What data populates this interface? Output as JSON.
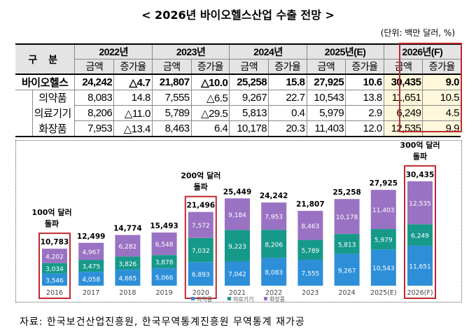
{
  "title": "< 2026년 바이오헬스산업 수출 전망 >",
  "unit": "(단위: 백만 달러, %)",
  "table": {
    "corner": "구  분",
    "years": [
      "2022년",
      "2023년",
      "2024년",
      "2025년(E)",
      "2026년(F)"
    ],
    "subheaders": [
      "금액",
      "증가율"
    ],
    "rows": [
      {
        "label": "바이오헬스",
        "cells": [
          "24,242",
          "△4.7",
          "21,807",
          "△10.0",
          "25,258",
          "15.8",
          "27,925",
          "10.6",
          "30,435",
          "9.0"
        ]
      },
      {
        "label": "의약품",
        "cells": [
          "8,083",
          "14.8",
          "7,555",
          "△6.5",
          "9,267",
          "22.7",
          "10,543",
          "13.8",
          "11,651",
          "10.5"
        ]
      },
      {
        "label": "의료기기",
        "cells": [
          "8,206",
          "△11.0",
          "5,789",
          "△29.5",
          "5,813",
          "0.4",
          "5,979",
          "2.9",
          "6,249",
          "4.5"
        ]
      },
      {
        "label": "화장품",
        "cells": [
          "7,953",
          "△13.4",
          "8,463",
          "6.4",
          "10,178",
          "20.3",
          "11,403",
          "12.0",
          "12,535",
          "9.9"
        ]
      }
    ]
  },
  "chart_data": {
    "type": "bar",
    "stacked": true,
    "categories": [
      "2016",
      "2017",
      "2018",
      "2019",
      "2020",
      "2021",
      "2022",
      "2023",
      "2024",
      "2025(E)",
      "2026(F)"
    ],
    "series": [
      {
        "name": "의약품",
        "color": "#2e8fd9",
        "values": [
          3546,
          4058,
          4665,
          5066,
          6893,
          7042,
          8083,
          7555,
          9267,
          10543,
          11651
        ]
      },
      {
        "name": "의료기기",
        "color": "#17998a",
        "values": [
          3034,
          3475,
          3826,
          3878,
          7032,
          9223,
          8206,
          5789,
          5813,
          5979,
          6249
        ]
      },
      {
        "name": "화장품",
        "color": "#9a72c3",
        "values": [
          4202,
          4967,
          6282,
          6548,
          7572,
          9184,
          7953,
          8463,
          10178,
          11403,
          12535
        ]
      }
    ],
    "totals": [
      "10,783",
      "12,499",
      "14,774",
      "15,493",
      "21,496",
      "25,449",
      "24,242",
      "21,807",
      "25,258",
      "27,925",
      "30,435"
    ],
    "labels": [
      [
        "3,546",
        "4,058",
        "4,665",
        "5,066",
        "6,893",
        "7,042",
        "8,083",
        "7,555",
        "9,267",
        "10,543",
        "11,651"
      ],
      [
        "3,034",
        "3,475",
        "3,826",
        "3,878",
        "7,032",
        "9,223",
        "8,206",
        "5,789",
        "5,813",
        "5,979",
        "6,249"
      ],
      [
        "4,202",
        "4,967",
        "6,282",
        "6,548",
        "7,572",
        "9,184",
        "7,953",
        "8,463",
        "10,178",
        "11,403",
        "12,535"
      ]
    ],
    "annotations": [
      {
        "index": 0,
        "lines": [
          "100억 달러",
          "돌파"
        ]
      },
      {
        "index": 4,
        "lines": [
          "200억 달러",
          "돌파"
        ]
      },
      {
        "index": 10,
        "lines": [
          "300억 달러",
          "돌파"
        ]
      }
    ],
    "highlight_color": "#c0282d"
  },
  "source": "자료: 한국보건산업진흥원, 한국무역통계진흥원 무역통계 재가공"
}
